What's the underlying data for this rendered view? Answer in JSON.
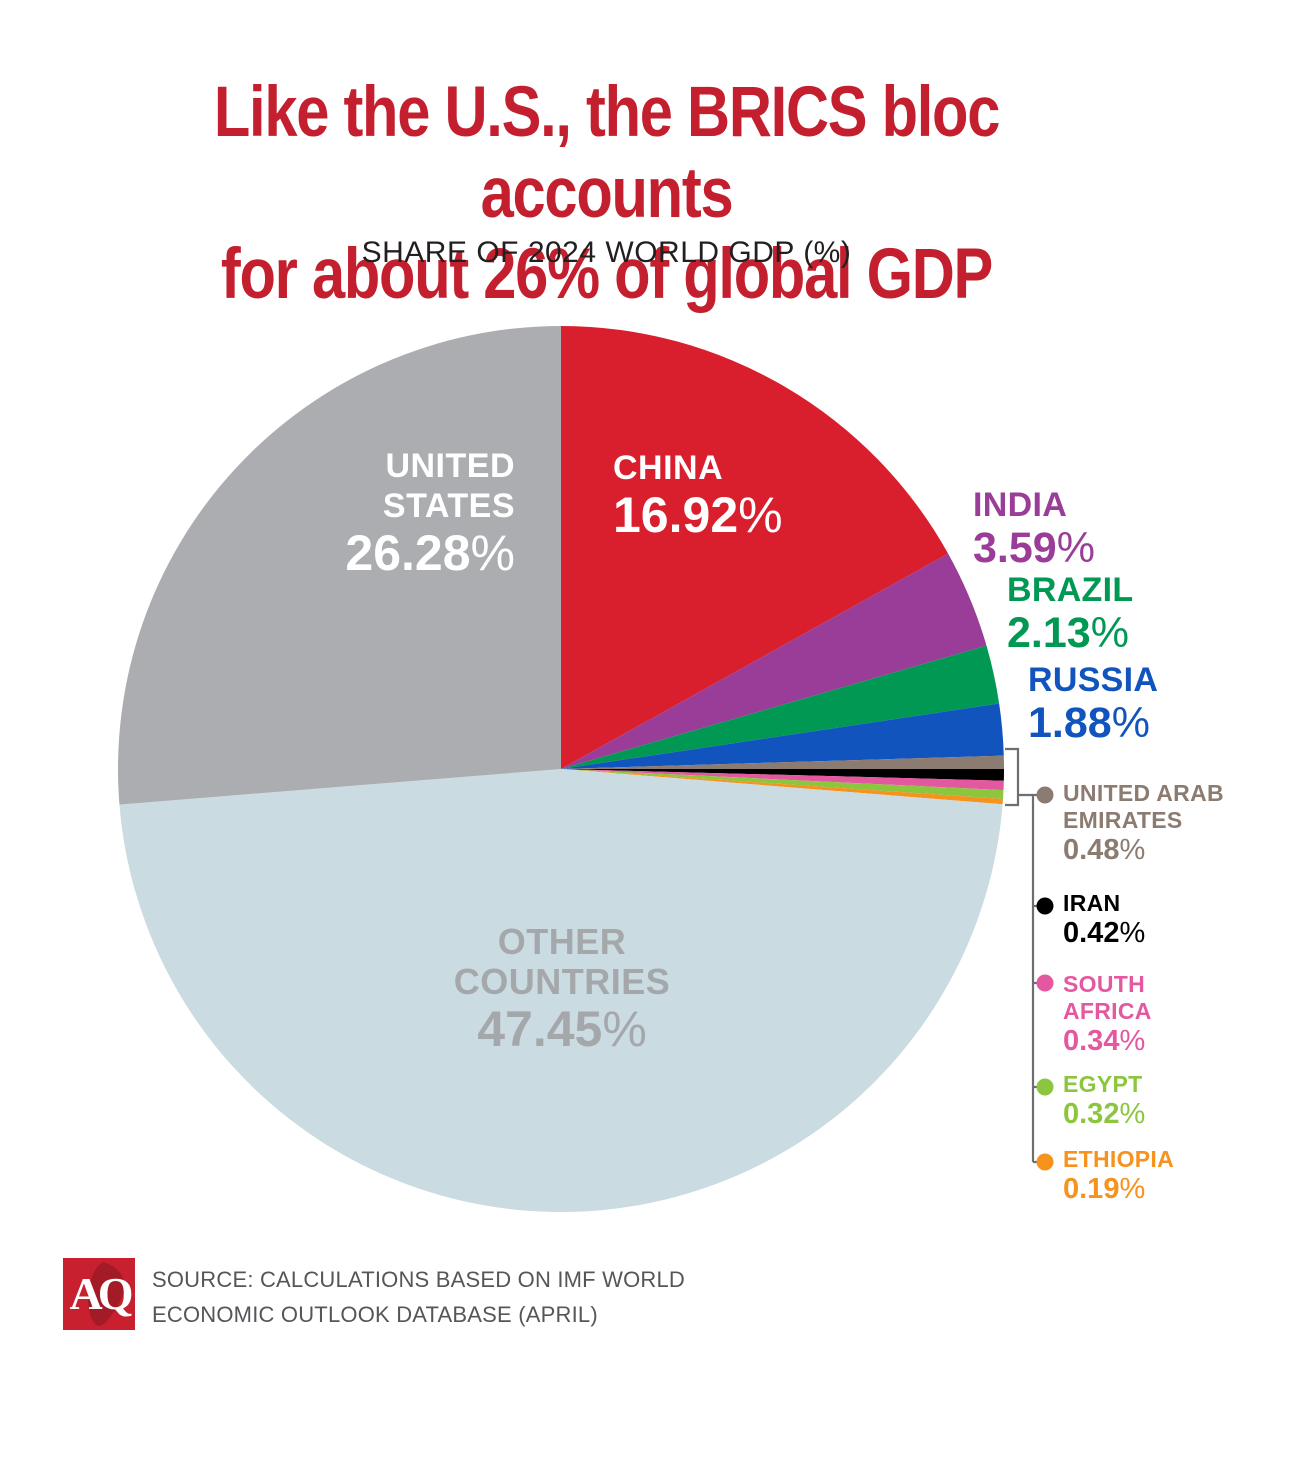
{
  "title": {
    "line1": "Like the U.S., the BRICS bloc accounts",
    "line2": "for about 26% of global GDP"
  },
  "subtitle": "SHARE OF 2024 WORLD GDP (%)",
  "strings": {
    "percent_sign": "%"
  },
  "chart_data": {
    "type": "pie",
    "title": "SHARE OF 2024 WORLD GDP (%)",
    "start_angle": "12 o'clock",
    "direction": "clockwise",
    "units": "% of 2024 world GDP",
    "slices": [
      {
        "label": "CHINA",
        "value": 16.92,
        "value_text": "16.92",
        "color": "#D91F2D",
        "label_placement": "inside"
      },
      {
        "label": "INDIA",
        "value": 3.59,
        "value_text": "3.59",
        "color": "#9A3D98",
        "label_placement": "outside"
      },
      {
        "label": "BRAZIL",
        "value": 2.13,
        "value_text": "2.13",
        "color": "#009853",
        "label_placement": "outside"
      },
      {
        "label": "RUSSIA",
        "value": 1.88,
        "value_text": "1.88",
        "color": "#1254BE",
        "label_placement": "outside"
      },
      {
        "label": "UNITED ARAB EMIRATES",
        "value": 0.48,
        "value_text": "0.48",
        "color": "#8C7B71",
        "label_placement": "legend"
      },
      {
        "label": "IRAN",
        "value": 0.42,
        "value_text": "0.42",
        "color": "#000000",
        "label_placement": "legend"
      },
      {
        "label": "SOUTH AFRICA",
        "value": 0.34,
        "value_text": "0.34",
        "color": "#E4589F",
        "label_placement": "legend"
      },
      {
        "label": "EGYPT",
        "value": 0.32,
        "value_text": "0.32",
        "color": "#8CC63F",
        "label_placement": "legend"
      },
      {
        "label": "ETHIOPIA",
        "value": 0.19,
        "value_text": "0.19",
        "color": "#F6921E",
        "label_placement": "legend"
      },
      {
        "label": "OTHER COUNTRIES",
        "value": 47.45,
        "value_text": "47.45",
        "color": "#CBDBE2",
        "label_placement": "inside"
      },
      {
        "label": "UNITED STATES",
        "value": 26.28,
        "value_text": "26.28",
        "color": "#ABADB0",
        "label_placement": "inside"
      }
    ]
  },
  "footer": {
    "logo_text": "AQ",
    "source_line1": "SOURCE: CALCULATIONS BASED ON IMF WORLD",
    "source_line2": "ECONOMIC OUTLOOK DATABASE (APRIL)"
  },
  "colors": {
    "title_red": "#C31F2E",
    "text_dark": "#231F20",
    "inside_label_gray": "#A5A8AB",
    "source_gray": "#55565A",
    "connector_gray": "#6D6E71",
    "logo_red": "#C8202F",
    "logo_map_red": "#A21B26"
  }
}
